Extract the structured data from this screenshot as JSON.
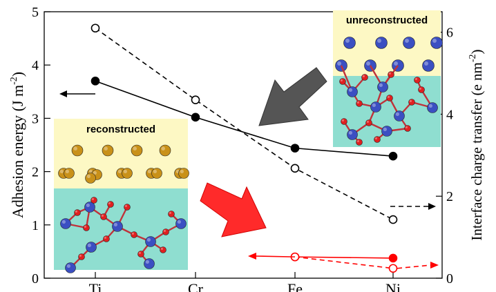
{
  "chart_data": {
    "type": "line",
    "title": "",
    "categories": [
      "Ti",
      "Cr",
      "Fe",
      "Ni"
    ],
    "ylabel_left": {
      "main": "Adhesion energy (J m",
      "sup": "-2",
      "close": ")"
    },
    "ylabel_right": {
      "main": "Interface charge transfer (e  nm",
      "sup": "-2",
      "close": ")"
    },
    "y_left_range": [
      0,
      5
    ],
    "y_left_ticks": [
      "0",
      "1",
      "2",
      "3",
      "4",
      "5"
    ],
    "y_right_range": [
      0,
      6.5
    ],
    "y_right_ticks": [
      "0",
      "2",
      "4",
      "6"
    ],
    "series": [
      {
        "axis": "left",
        "style": "solid",
        "marker": "filled",
        "color": "#000000",
        "values": [
          3.7,
          3.02,
          2.44,
          2.29
        ]
      },
      {
        "axis": "right",
        "style": "dashed",
        "marker": "open",
        "color": "#000000",
        "values": [
          6.1,
          4.35,
          2.68,
          1.43
        ]
      },
      {
        "axis": "right",
        "style": "solid",
        "marker": "filled",
        "color": "#ff0000",
        "values": [
          null,
          null,
          0.52,
          0.49
        ]
      },
      {
        "axis": "right",
        "style": "dashed",
        "marker": "open",
        "color": "#ff0000",
        "values": [
          null,
          null,
          0.52,
          0.24
        ]
      }
    ],
    "insets": {
      "reconstructed": "reconstructed",
      "unreconstructed": "unreconstructed"
    },
    "colors": {
      "inset_top": "#fdf8c4",
      "inset_bottom": "#8fded0",
      "au_atom": "#c99119",
      "substrate_atom": "#3b4fc2",
      "oxygen_atom": "#e02020",
      "grey_arrow": "#555555",
      "red_arrow": "#ff2a2a"
    }
  }
}
